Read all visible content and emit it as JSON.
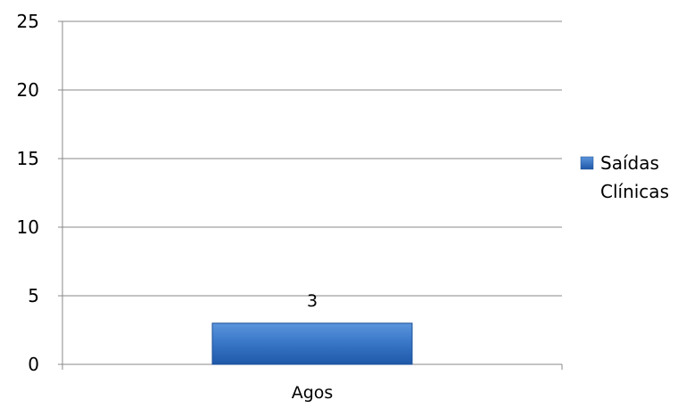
{
  "chart_data": {
    "type": "bar",
    "categories": [
      "Agos"
    ],
    "series": [
      {
        "name": "Saídas Clínicas",
        "values": [
          3
        ],
        "color": "#2e6bb8"
      }
    ],
    "data_labels": [
      "3"
    ],
    "y_ticks": [
      "0",
      "5",
      "10",
      "15",
      "20",
      "25"
    ],
    "ylim": [
      0,
      25
    ],
    "grid": true,
    "legend_position": "right",
    "legend_entries": [
      "Saídas",
      "Clínicas"
    ]
  }
}
